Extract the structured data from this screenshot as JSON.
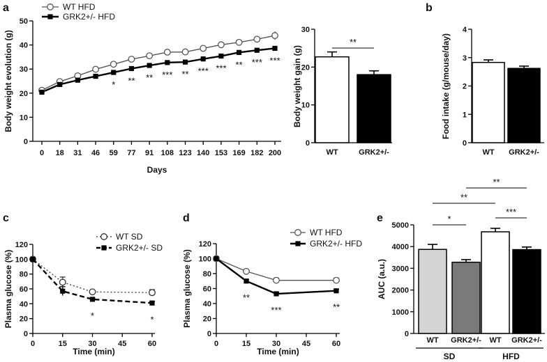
{
  "chart_data": [
    {
      "panel": "a",
      "type": "line",
      "xlabel": "Days",
      "ylabel": "Body weight evolution (g)",
      "ylim": [
        0,
        50
      ],
      "yticks": [
        0,
        10,
        20,
        30,
        40,
        50
      ],
      "x": [
        0,
        18,
        31,
        46,
        59,
        77,
        91,
        108,
        123,
        140,
        153,
        169,
        182,
        200
      ],
      "series": [
        {
          "name": "WT HFD",
          "marker": "open-circle",
          "color": "#555555",
          "values": [
            21.2,
            24.8,
            27.2,
            29.9,
            32.0,
            34.1,
            35.5,
            37.0,
            37.1,
            38.6,
            40.1,
            41.1,
            42.4,
            43.9
          ]
        },
        {
          "name": "GRK2+/- HFD",
          "marker": "filled-square",
          "color": "#000000",
          "values": [
            20.4,
            23.6,
            25.4,
            27.0,
            28.6,
            30.2,
            31.5,
            32.7,
            32.9,
            34.2,
            35.4,
            36.9,
            37.8,
            38.6
          ]
        }
      ],
      "significance": [
        "",
        "",
        "",
        "",
        "*",
        "**",
        "**",
        "***",
        "**",
        "***",
        "***",
        "**",
        "***",
        "***"
      ]
    },
    {
      "panel": "a2",
      "type": "bar",
      "ylabel": "Body weight gain (g)",
      "ylim": [
        0,
        30
      ],
      "yticks": [
        0,
        10,
        20,
        30
      ],
      "categories": [
        "WT",
        "GRK2+/-"
      ],
      "values": [
        22.7,
        18.0
      ],
      "errors": [
        1.3,
        1.0
      ],
      "fills": [
        "#ffffff",
        "#000000"
      ],
      "brackets": [
        {
          "from": 0,
          "to": 1,
          "label": "**"
        }
      ]
    },
    {
      "panel": "b",
      "type": "bar",
      "ylabel": "Food intake (g/mouse/day)",
      "ylim": [
        0,
        4
      ],
      "yticks": [
        0,
        1,
        2,
        3,
        4
      ],
      "categories": [
        "WT",
        "GRK2+/-"
      ],
      "values": [
        2.83,
        2.62
      ],
      "errors": [
        0.09,
        0.08
      ],
      "fills": [
        "#ffffff",
        "#000000"
      ]
    },
    {
      "panel": "c",
      "type": "line",
      "xlabel": "Time (min)",
      "ylabel": "Plasma glucose (%)",
      "ylim": [
        0,
        120
      ],
      "yticks": [
        0,
        20,
        40,
        60,
        80,
        100,
        120
      ],
      "xticks": [
        0,
        15,
        30,
        45,
        60
      ],
      "x": [
        0,
        15,
        30,
        60
      ],
      "series": [
        {
          "name": "WT SD",
          "marker": "open-circle",
          "dash": "dotted",
          "color": "#333333",
          "values": [
            100,
            69,
            56,
            55
          ],
          "errors": [
            0,
            7,
            2,
            4
          ]
        },
        {
          "name": "GRK2+/- SD",
          "marker": "filled-square",
          "dash": "dashed",
          "color": "#000000",
          "values": [
            100,
            57,
            46,
            41
          ],
          "errors": [
            0,
            6,
            2,
            2
          ]
        }
      ],
      "significance": [
        "",
        "",
        "*",
        "*"
      ]
    },
    {
      "panel": "d",
      "type": "line",
      "xlabel": "Time (min)",
      "ylabel": "Plasma glucose (%)",
      "ylim": [
        0,
        120
      ],
      "yticks": [
        0,
        20,
        40,
        60,
        80,
        100,
        120
      ],
      "xticks": [
        0,
        15,
        30,
        45,
        60
      ],
      "x": [
        0,
        15,
        30,
        60
      ],
      "series": [
        {
          "name": "WT HFD",
          "marker": "open-circle",
          "color": "#555555",
          "values": [
            100,
            83,
            71,
            71
          ],
          "errors": [
            0,
            2,
            3,
            3
          ]
        },
        {
          "name": "GRK2+/- HFD",
          "marker": "filled-square",
          "color": "#000000",
          "values": [
            100,
            70,
            53,
            57
          ],
          "errors": [
            0,
            2,
            2,
            2
          ]
        }
      ],
      "significance": [
        "",
        "**",
        "***",
        "**"
      ]
    },
    {
      "panel": "e",
      "type": "bar",
      "ylabel": "AUC (a.u.)",
      "ylim": [
        0,
        5000
      ],
      "yticks": [
        0,
        1000,
        2000,
        3000,
        4000,
        5000
      ],
      "categories": [
        "WT",
        "GRK2+/-",
        "WT",
        "GRK2+/-"
      ],
      "values": [
        3870,
        3280,
        4680,
        3860
      ],
      "errors": [
        230,
        120,
        160,
        120
      ],
      "fills": [
        "#d4d4d4",
        "#7a7a7a",
        "#ffffff",
        "#000000"
      ],
      "groups": [
        {
          "label": "SD",
          "members": [
            0,
            1
          ]
        },
        {
          "label": "HFD",
          "members": [
            2,
            3
          ]
        }
      ],
      "brackets": [
        {
          "from": 0,
          "to": 1,
          "label": "*"
        },
        {
          "from": 2,
          "to": 3,
          "label": "***"
        },
        {
          "from": 0,
          "to": 2,
          "label": "**"
        },
        {
          "from": 1,
          "to": 3,
          "label": "**"
        }
      ]
    }
  ]
}
